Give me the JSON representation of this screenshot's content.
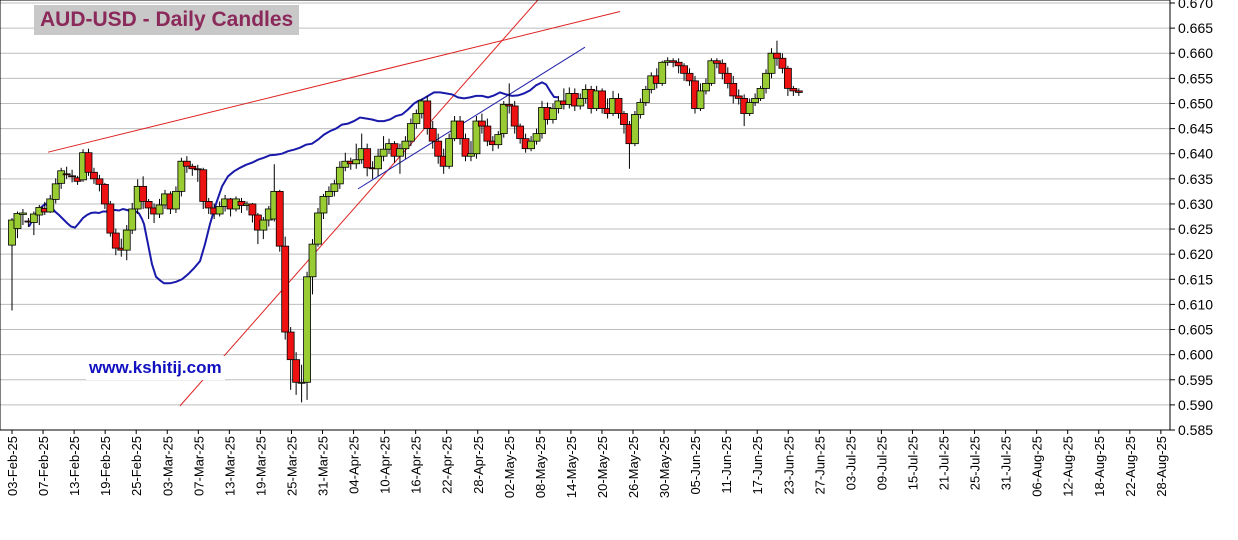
{
  "chart_data": {
    "type": "candlestick",
    "title": "AUD-USD - Daily Candles",
    "watermark": "www.kshitij.com",
    "ylim": [
      0.585,
      0.67
    ],
    "y_ticks": [
      "0.585",
      "0.590",
      "0.595",
      "0.600",
      "0.605",
      "0.610",
      "0.615",
      "0.620",
      "0.625",
      "0.630",
      "0.635",
      "0.640",
      "0.645",
      "0.650",
      "0.655",
      "0.660",
      "0.665",
      "0.670"
    ],
    "x_ticks": [
      "03-Feb-25",
      "07-Feb-25",
      "13-Feb-25",
      "19-Feb-25",
      "25-Feb-25",
      "03-Mar-25",
      "07-Mar-25",
      "13-Mar-25",
      "19-Mar-25",
      "25-Mar-25",
      "31-Mar-25",
      "04-Apr-25",
      "10-Apr-25",
      "16-Apr-25",
      "22-Apr-25",
      "28-Apr-25",
      "02-May-25",
      "08-May-25",
      "14-May-25",
      "20-May-25",
      "26-May-25",
      "30-May-25",
      "05-Jun-25",
      "11-Jun-25",
      "17-Jun-25",
      "23-Jun-25",
      "27-Jun-25",
      "03-Jul-25",
      "09-Jul-25",
      "15-Jul-25",
      "21-Jul-25",
      "25-Jul-25",
      "31-Jul-25",
      "06-Aug-25",
      "12-Aug-25",
      "18-Aug-25",
      "22-Aug-25",
      "28-Aug-25"
    ],
    "grid": true,
    "colors": {
      "up": "#99cc33",
      "down": "#ee1111",
      "ma": "#1a1aaa",
      "trend_red": "#dd2222",
      "trend_blue": "#2222aa"
    },
    "candles": [
      [
        0.6218,
        0.6268,
        0.6088,
        0.6272
      ],
      [
        0.6251,
        0.6281,
        0.6232,
        0.6285
      ],
      [
        0.6279,
        0.6282,
        0.6258,
        0.629
      ],
      [
        0.6266,
        0.6264,
        0.6254,
        0.6272
      ],
      [
        0.6263,
        0.628,
        0.6238,
        0.6285
      ],
      [
        0.6278,
        0.6293,
        0.6258,
        0.6298
      ],
      [
        0.6291,
        0.6284,
        0.6278,
        0.6304
      ],
      [
        0.6284,
        0.631,
        0.6282,
        0.6318
      ],
      [
        0.6309,
        0.634,
        0.6301,
        0.6351
      ],
      [
        0.6341,
        0.6366,
        0.633,
        0.6372
      ],
      [
        0.636,
        0.6359,
        0.635,
        0.6374
      ],
      [
        0.6356,
        0.6355,
        0.6343,
        0.6368
      ],
      [
        0.6352,
        0.6345,
        0.6338,
        0.6356
      ],
      [
        0.6348,
        0.6402,
        0.6344,
        0.6409
      ],
      [
        0.6402,
        0.6363,
        0.6356,
        0.641
      ],
      [
        0.6363,
        0.635,
        0.634,
        0.6372
      ],
      [
        0.635,
        0.6339,
        0.6325,
        0.6358
      ],
      [
        0.6339,
        0.63,
        0.629,
        0.6342
      ],
      [
        0.63,
        0.6242,
        0.6235,
        0.6306
      ],
      [
        0.6242,
        0.6212,
        0.6198,
        0.6251
      ],
      [
        0.6212,
        0.6208,
        0.6195,
        0.6231
      ],
      [
        0.6208,
        0.6248,
        0.6188,
        0.6258
      ],
      [
        0.6248,
        0.629,
        0.624,
        0.6302
      ],
      [
        0.629,
        0.6335,
        0.628,
        0.6349
      ],
      [
        0.6335,
        0.6305,
        0.629,
        0.6355
      ],
      [
        0.6305,
        0.6292,
        0.627,
        0.631
      ],
      [
        0.6292,
        0.628,
        0.6262,
        0.6301
      ],
      [
        0.628,
        0.6298,
        0.6272,
        0.631
      ],
      [
        0.6298,
        0.632,
        0.629,
        0.6328
      ],
      [
        0.632,
        0.629,
        0.628,
        0.6325
      ],
      [
        0.629,
        0.6325,
        0.6282,
        0.6335
      ],
      [
        0.6325,
        0.6385,
        0.6315,
        0.6392
      ],
      [
        0.6385,
        0.6375,
        0.6362,
        0.6395
      ],
      [
        0.6375,
        0.637,
        0.6356,
        0.638
      ],
      [
        0.637,
        0.6368,
        0.6344,
        0.6378
      ],
      [
        0.6368,
        0.6305,
        0.629,
        0.6372
      ],
      [
        0.6305,
        0.6292,
        0.628,
        0.6312
      ],
      [
        0.6292,
        0.628,
        0.627,
        0.6301
      ],
      [
        0.628,
        0.6295,
        0.6275,
        0.6305
      ],
      [
        0.6295,
        0.631,
        0.6285,
        0.6318
      ],
      [
        0.631,
        0.629,
        0.6275,
        0.6312
      ],
      [
        0.629,
        0.631,
        0.6285,
        0.6315
      ],
      [
        0.6305,
        0.6297,
        0.6282,
        0.6312
      ],
      [
        0.6297,
        0.63,
        0.6287,
        0.6305
      ],
      [
        0.63,
        0.6278,
        0.6263,
        0.6302
      ],
      [
        0.6278,
        0.6248,
        0.622,
        0.6282
      ],
      [
        0.6248,
        0.6268,
        0.623,
        0.6274
      ],
      [
        0.6268,
        0.629,
        0.6255,
        0.6296
      ],
      [
        0.627,
        0.6325,
        0.6265,
        0.6379
      ],
      [
        0.6325,
        0.6216,
        0.6205,
        0.6328
      ],
      [
        0.6216,
        0.6045,
        0.603,
        0.6235
      ],
      [
        0.6045,
        0.599,
        0.593,
        0.6055
      ],
      [
        0.599,
        0.5945,
        0.592,
        0.6005
      ],
      [
        0.5945,
        0.5945,
        0.5905,
        0.598
      ],
      [
        0.5945,
        0.6155,
        0.591,
        0.6165
      ],
      [
        0.6155,
        0.622,
        0.612,
        0.623
      ],
      [
        0.622,
        0.6282,
        0.6215,
        0.6292
      ],
      [
        0.6282,
        0.6315,
        0.627,
        0.632
      ],
      [
        0.6315,
        0.6325,
        0.6298,
        0.6335
      ],
      [
        0.6325,
        0.634,
        0.6315,
        0.6348
      ],
      [
        0.634,
        0.6373,
        0.633,
        0.6385
      ],
      [
        0.6373,
        0.6385,
        0.6365,
        0.6402
      ],
      [
        0.6385,
        0.638,
        0.6368,
        0.6392
      ],
      [
        0.638,
        0.6388,
        0.637,
        0.642
      ],
      [
        0.6388,
        0.641,
        0.638,
        0.644
      ],
      [
        0.641,
        0.6372,
        0.6355,
        0.642
      ],
      [
        0.6372,
        0.637,
        0.635,
        0.6385
      ],
      [
        0.637,
        0.6395,
        0.6355,
        0.641
      ],
      [
        0.6395,
        0.6409,
        0.6385,
        0.6435
      ],
      [
        0.6409,
        0.642,
        0.64,
        0.643
      ],
      [
        0.642,
        0.6395,
        0.6382,
        0.6425
      ],
      [
        0.6395,
        0.641,
        0.636,
        0.642
      ],
      [
        0.641,
        0.6425,
        0.639,
        0.6435
      ],
      [
        0.6425,
        0.646,
        0.6415,
        0.647
      ],
      [
        0.646,
        0.648,
        0.645,
        0.6488
      ],
      [
        0.648,
        0.6505,
        0.647,
        0.651
      ],
      [
        0.6505,
        0.645,
        0.6438,
        0.6515
      ],
      [
        0.645,
        0.6425,
        0.641,
        0.6465
      ],
      [
        0.6425,
        0.6395,
        0.638,
        0.644
      ],
      [
        0.6395,
        0.6375,
        0.636,
        0.641
      ],
      [
        0.6375,
        0.643,
        0.637,
        0.644
      ],
      [
        0.643,
        0.6465,
        0.6425,
        0.6475
      ],
      [
        0.6465,
        0.643,
        0.6418,
        0.6475
      ],
      [
        0.643,
        0.6395,
        0.6385,
        0.644
      ],
      [
        0.6395,
        0.64,
        0.6385,
        0.6425
      ],
      [
        0.64,
        0.6465,
        0.639,
        0.6475
      ],
      [
        0.6465,
        0.6455,
        0.644,
        0.648
      ],
      [
        0.6455,
        0.6425,
        0.6415,
        0.647
      ],
      [
        0.6425,
        0.6418,
        0.6405,
        0.6435
      ],
      [
        0.6418,
        0.6438,
        0.641,
        0.6445
      ],
      [
        0.644,
        0.6498,
        0.6432,
        0.6505
      ],
      [
        0.6498,
        0.6495,
        0.648,
        0.654
      ],
      [
        0.6495,
        0.6455,
        0.644,
        0.6505
      ],
      [
        0.6455,
        0.643,
        0.642,
        0.646
      ],
      [
        0.643,
        0.641,
        0.6402,
        0.644
      ],
      [
        0.641,
        0.6425,
        0.6405,
        0.6435
      ],
      [
        0.6425,
        0.644,
        0.6418,
        0.645
      ],
      [
        0.644,
        0.6492,
        0.643,
        0.6505
      ],
      [
        0.6492,
        0.6468,
        0.6458,
        0.6502
      ],
      [
        0.6468,
        0.649,
        0.646,
        0.65
      ],
      [
        0.649,
        0.6505,
        0.648,
        0.6515
      ],
      [
        0.6505,
        0.6498,
        0.6488,
        0.653
      ],
      [
        0.6498,
        0.652,
        0.649,
        0.6532
      ],
      [
        0.652,
        0.6495,
        0.6485,
        0.653
      ],
      [
        0.6495,
        0.651,
        0.6488,
        0.652
      ],
      [
        0.651,
        0.6528,
        0.65,
        0.6538
      ],
      [
        0.6528,
        0.649,
        0.648,
        0.6535
      ],
      [
        0.649,
        0.6525,
        0.6485,
        0.6535
      ],
      [
        0.6525,
        0.649,
        0.648,
        0.653
      ],
      [
        0.649,
        0.648,
        0.647,
        0.651
      ],
      [
        0.648,
        0.651,
        0.6475,
        0.6525
      ],
      [
        0.651,
        0.648,
        0.647,
        0.652
      ],
      [
        0.648,
        0.6458,
        0.644,
        0.6485
      ],
      [
        0.6458,
        0.642,
        0.637,
        0.6465
      ],
      [
        0.642,
        0.6478,
        0.6415,
        0.6485
      ],
      [
        0.6478,
        0.6502,
        0.647,
        0.651
      ],
      [
        0.6502,
        0.6528,
        0.6495,
        0.6535
      ],
      [
        0.6528,
        0.6555,
        0.652,
        0.6562
      ],
      [
        0.6555,
        0.654,
        0.653,
        0.657
      ],
      [
        0.654,
        0.6582,
        0.6535,
        0.6585
      ],
      [
        0.6582,
        0.6585,
        0.6575,
        0.6592
      ],
      [
        0.6585,
        0.6582,
        0.6572,
        0.659
      ],
      [
        0.6582,
        0.6575,
        0.656,
        0.659
      ],
      [
        0.6575,
        0.656,
        0.6545,
        0.658
      ],
      [
        0.656,
        0.6545,
        0.6535,
        0.657
      ],
      [
        0.6545,
        0.649,
        0.648,
        0.6555
      ],
      [
        0.649,
        0.6525,
        0.6485,
        0.654
      ],
      [
        0.6525,
        0.654,
        0.6518,
        0.655
      ],
      [
        0.654,
        0.6585,
        0.6535,
        0.659
      ],
      [
        0.6585,
        0.658,
        0.657,
        0.659
      ],
      [
        0.658,
        0.656,
        0.6548,
        0.6588
      ],
      [
        0.656,
        0.654,
        0.653,
        0.6572
      ],
      [
        0.654,
        0.6515,
        0.65,
        0.6555
      ],
      [
        0.6515,
        0.651,
        0.6498,
        0.6528
      ],
      [
        0.651,
        0.648,
        0.6455,
        0.6518
      ],
      [
        0.648,
        0.6502,
        0.6475,
        0.651
      ],
      [
        0.6502,
        0.651,
        0.6495,
        0.652
      ],
      [
        0.651,
        0.653,
        0.6505,
        0.6535
      ],
      [
        0.653,
        0.656,
        0.652,
        0.6568
      ],
      [
        0.656,
        0.66,
        0.655,
        0.661
      ],
      [
        0.66,
        0.659,
        0.6575,
        0.6625
      ],
      [
        0.659,
        0.657,
        0.656,
        0.66
      ],
      [
        0.657,
        0.653,
        0.6515,
        0.6575
      ],
      [
        0.653,
        0.6525,
        0.6515,
        0.6535
      ],
      [
        0.6525,
        0.6522,
        0.6515,
        0.653
      ]
    ],
    "moving_average": [
      [
        29,
        0.6255
      ],
      [
        33,
        0.627
      ],
      [
        37,
        0.6285
      ],
      [
        41,
        0.6293
      ],
      [
        45,
        0.63
      ],
      [
        47,
        0.6298
      ],
      [
        51,
        0.6295
      ],
      [
        55,
        0.6285
      ],
      [
        59,
        0.6278
      ],
      [
        63,
        0.627
      ],
      [
        67,
        0.6262
      ],
      [
        71,
        0.6255
      ],
      [
        75,
        0.6253
      ],
      [
        79,
        0.6262
      ],
      [
        83,
        0.6272
      ],
      [
        87,
        0.6278
      ],
      [
        91,
        0.6282
      ],
      [
        95,
        0.6283
      ],
      [
        99,
        0.6282
      ],
      [
        103,
        0.6285
      ],
      [
        107,
        0.6285
      ],
      [
        111,
        0.6288
      ],
      [
        115,
        0.6288
      ],
      [
        119,
        0.6287
      ],
      [
        123,
        0.629
      ],
      [
        127,
        0.6288
      ],
      [
        131,
        0.6285
      ],
      [
        135,
        0.6286
      ],
      [
        139,
        0.6281
      ],
      [
        142,
        0.627
      ],
      [
        144,
        0.626
      ],
      [
        148,
        0.622
      ],
      [
        152,
        0.618
      ],
      [
        156,
        0.6155
      ],
      [
        160,
        0.6148
      ],
      [
        164,
        0.6142
      ],
      [
        170,
        0.6142
      ],
      [
        176,
        0.6145
      ],
      [
        182,
        0.615
      ],
      [
        188,
        0.616
      ],
      [
        194,
        0.6172
      ],
      [
        200,
        0.6186
      ],
      [
        205,
        0.622
      ],
      [
        210,
        0.626
      ],
      [
        216,
        0.63
      ],
      [
        222,
        0.6335
      ],
      [
        228,
        0.6355
      ],
      [
        234,
        0.6365
      ],
      [
        240,
        0.6372
      ],
      [
        246,
        0.6378
      ],
      [
        252,
        0.6382
      ],
      [
        258,
        0.6388
      ],
      [
        264,
        0.6392
      ],
      [
        270,
        0.6397
      ],
      [
        276,
        0.6398
      ],
      [
        282,
        0.64
      ],
      [
        288,
        0.6405
      ],
      [
        294,
        0.6408
      ],
      [
        300,
        0.6412
      ],
      [
        306,
        0.6418
      ],
      [
        312,
        0.642
      ],
      [
        318,
        0.6428
      ],
      [
        324,
        0.6438
      ],
      [
        330,
        0.6445
      ],
      [
        336,
        0.645
      ],
      [
        342,
        0.6458
      ],
      [
        348,
        0.646
      ],
      [
        354,
        0.6465
      ],
      [
        360,
        0.6472
      ],
      [
        366,
        0.647
      ],
      [
        372,
        0.6468
      ],
      [
        378,
        0.6465
      ],
      [
        384,
        0.6465
      ],
      [
        390,
        0.6468
      ],
      [
        396,
        0.6475
      ],
      [
        402,
        0.6478
      ],
      [
        408,
        0.6488
      ],
      [
        414,
        0.65
      ],
      [
        418,
        0.6505
      ],
      [
        422,
        0.6508
      ],
      [
        428,
        0.6515
      ],
      [
        434,
        0.6522
      ],
      [
        440,
        0.6522
      ],
      [
        446,
        0.652
      ],
      [
        452,
        0.6518
      ],
      [
        458,
        0.6512
      ],
      [
        464,
        0.651
      ],
      [
        470,
        0.6512
      ],
      [
        476,
        0.6515
      ],
      [
        482,
        0.6515
      ],
      [
        488,
        0.6512
      ],
      [
        494,
        0.6516
      ],
      [
        500,
        0.6522
      ],
      [
        506,
        0.6518
      ],
      [
        512,
        0.6515
      ],
      [
        518,
        0.6516
      ],
      [
        524,
        0.652
      ],
      [
        530,
        0.6526
      ],
      [
        536,
        0.6536
      ],
      [
        542,
        0.6542
      ],
      [
        546,
        0.6538
      ],
      [
        550,
        0.6525
      ],
      [
        554,
        0.6513
      ],
      [
        558,
        0.6512
      ]
    ],
    "trend_lines": [
      {
        "color": "trend_red",
        "from": [
          48,
          0.6403
        ],
        "to": [
          620,
          0.6683
        ]
      },
      {
        "color": "trend_red",
        "from": [
          180,
          0.5898
        ],
        "to": [
          545,
          0.6722
        ]
      },
      {
        "color": "trend_blue",
        "from": [
          358,
          0.633
        ],
        "to": [
          585,
          0.6612
        ]
      }
    ]
  }
}
